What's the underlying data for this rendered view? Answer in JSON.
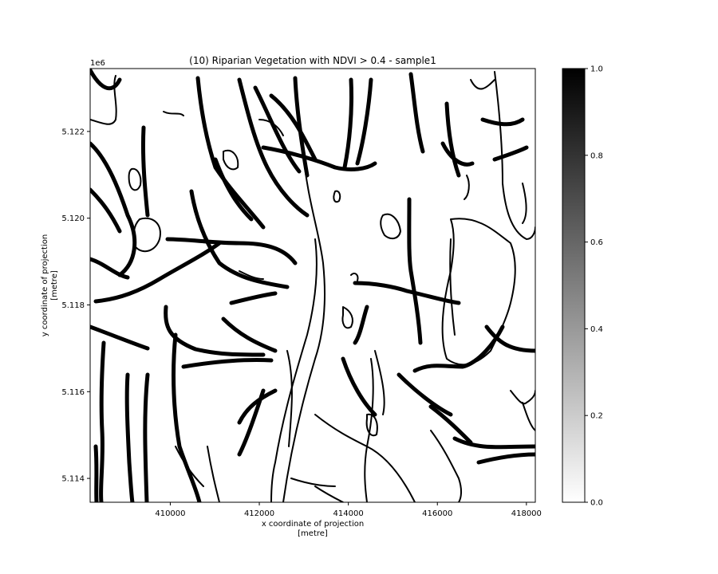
{
  "chart_data": {
    "type": "heatmap",
    "title": "(10) Riparian Vegetation with NDVI > 0.4 - sample1",
    "xlabel": "x coordinate of projection\n[metre]",
    "ylabel": "y coordinate of projection\n[metre]",
    "x_ticks": [
      410000,
      412000,
      414000,
      416000,
      418000
    ],
    "y_ticks": [
      5.114,
      5.116,
      5.118,
      5.12,
      5.122
    ],
    "y_offset_label": "1e6",
    "xlim": [
      408200,
      418200
    ],
    "ylim": [
      5.11345,
      5.12345
    ],
    "colorbar": {
      "ticks": [
        0.0,
        0.2,
        0.4,
        0.6,
        0.8,
        1.0
      ],
      "range": [
        0,
        1
      ],
      "colormap": "Greys",
      "low_color": "#ffffff",
      "high_color": "#000000"
    },
    "grid": false,
    "raster_description_values": "binary mask: 1 = riparian vegetation (black), 0 = background (white)"
  }
}
